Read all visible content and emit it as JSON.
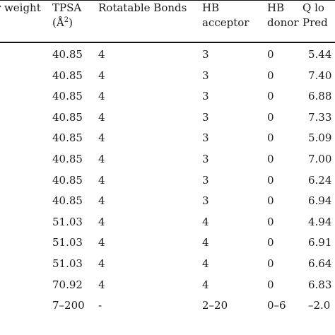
{
  "table": {
    "headers": {
      "mol_weight_partial": "r weight",
      "tpsa_line1": "TPSA",
      "tpsa_line2_prefix": "(Å",
      "tpsa_line2_sup": "2",
      "tpsa_line2_suffix": ")",
      "rotatable_bonds": "Rotatable Bonds",
      "hb_acceptor_line1": "HB",
      "hb_acceptor_line2": "acceptor",
      "hb_donor_line1": "HB",
      "hb_donor_line2": "donor",
      "qlog_line1_partial": "Q lo",
      "qlog_line2_partial": "Pred"
    },
    "rows": [
      {
        "tpsa": "40.85",
        "rot": "4",
        "hba": "3",
        "hbd": "0",
        "qlog": "5.44"
      },
      {
        "tpsa": "40.85",
        "rot": "4",
        "hba": "3",
        "hbd": "0",
        "qlog": "7.40"
      },
      {
        "tpsa": "40.85",
        "rot": "4",
        "hba": "3",
        "hbd": "0",
        "qlog": "6.88"
      },
      {
        "tpsa": "40.85",
        "rot": "4",
        "hba": "3",
        "hbd": "0",
        "qlog": "7.33"
      },
      {
        "tpsa": "40.85",
        "rot": "4",
        "hba": "3",
        "hbd": "0",
        "qlog": "5.09"
      },
      {
        "tpsa": "40.85",
        "rot": "4",
        "hba": "3",
        "hbd": "0",
        "qlog": "7.00"
      },
      {
        "tpsa": "40.85",
        "rot": "4",
        "hba": "3",
        "hbd": "0",
        "qlog": "6.24"
      },
      {
        "tpsa": "40.85",
        "rot": "4",
        "hba": "3",
        "hbd": "0",
        "qlog": "6.94"
      },
      {
        "tpsa": "51.03",
        "rot": "4",
        "hba": "4",
        "hbd": "0",
        "qlog": "4.94"
      },
      {
        "tpsa": "51.03",
        "rot": "4",
        "hba": "4",
        "hbd": "0",
        "qlog": "6.91"
      },
      {
        "tpsa": "51.03",
        "rot": "4",
        "hba": "4",
        "hbd": "0",
        "qlog": "6.64"
      },
      {
        "tpsa": "70.92",
        "rot": "4",
        "hba": "4",
        "hbd": "0",
        "qlog": "6.83"
      },
      {
        "tpsa": "7–200",
        "rot": "-",
        "hba": "2–20",
        "hbd": "0–6",
        "qlog": "–2.0"
      }
    ]
  }
}
